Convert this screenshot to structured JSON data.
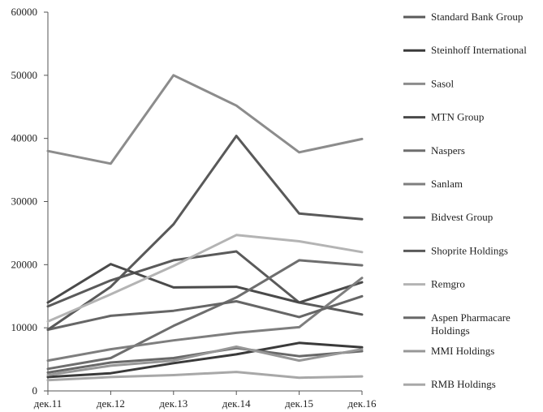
{
  "chart_data": {
    "type": "line",
    "title": "",
    "xlabel": "",
    "ylabel": "",
    "categories": [
      "дек.11",
      "дек.12",
      "дек.13",
      "дек.14",
      "дек.15",
      "дек.16"
    ],
    "ylim": [
      0,
      60000
    ],
    "yticks": [
      0,
      10000,
      20000,
      30000,
      40000,
      50000,
      60000
    ],
    "grid": false,
    "legend_position": "right",
    "series": [
      {
        "name": "Standard Bank Group",
        "color": "#5a5a5a",
        "values": [
          13400,
          17500,
          20700,
          22100,
          14000,
          12100
        ]
      },
      {
        "name": "Steinhoff International",
        "color": "#3a3a3a",
        "values": [
          2200,
          2800,
          4400,
          5800,
          7600,
          6900
        ]
      },
      {
        "name": "Sasol",
        "color": "#8c8c8c",
        "values": [
          38000,
          36000,
          50000,
          45200,
          37800,
          39900
        ]
      },
      {
        "name": "MTN Group",
        "color": "#4a4a4a",
        "values": [
          14000,
          20100,
          16400,
          16500,
          14000,
          17200
        ]
      },
      {
        "name": "Naspers",
        "color": "#6e6e6e",
        "values": [
          3500,
          5200,
          10300,
          14800,
          20700,
          19900
        ]
      },
      {
        "name": "Sanlam",
        "color": "#7e7e7e",
        "values": [
          4800,
          6600,
          8000,
          9200,
          10100,
          17900
        ]
      },
      {
        "name": "Bidvest Group",
        "color": "#666666",
        "values": [
          9700,
          11900,
          12700,
          14200,
          11700,
          15000
        ]
      },
      {
        "name": "Shoprite Holdings",
        "color": "#595959",
        "values": [
          9700,
          16500,
          26400,
          40400,
          28100,
          27200
        ]
      },
      {
        "name": "Remgro",
        "color": "#b4b4b4",
        "values": [
          11000,
          15300,
          19800,
          24700,
          23700,
          22000
        ]
      },
      {
        "name": "Aspen Pharmacare Holdings",
        "color": "#686868",
        "values": [
          2900,
          4500,
          5200,
          6800,
          5500,
          6300
        ]
      },
      {
        "name": "MMI Holdings",
        "color": "#979797",
        "values": [
          2500,
          4000,
          4800,
          7000,
          4800,
          6600
        ]
      },
      {
        "name": "RMB Holdings",
        "color": "#a8a8a8",
        "values": [
          1700,
          2200,
          2500,
          3000,
          2100,
          2300
        ]
      }
    ]
  }
}
